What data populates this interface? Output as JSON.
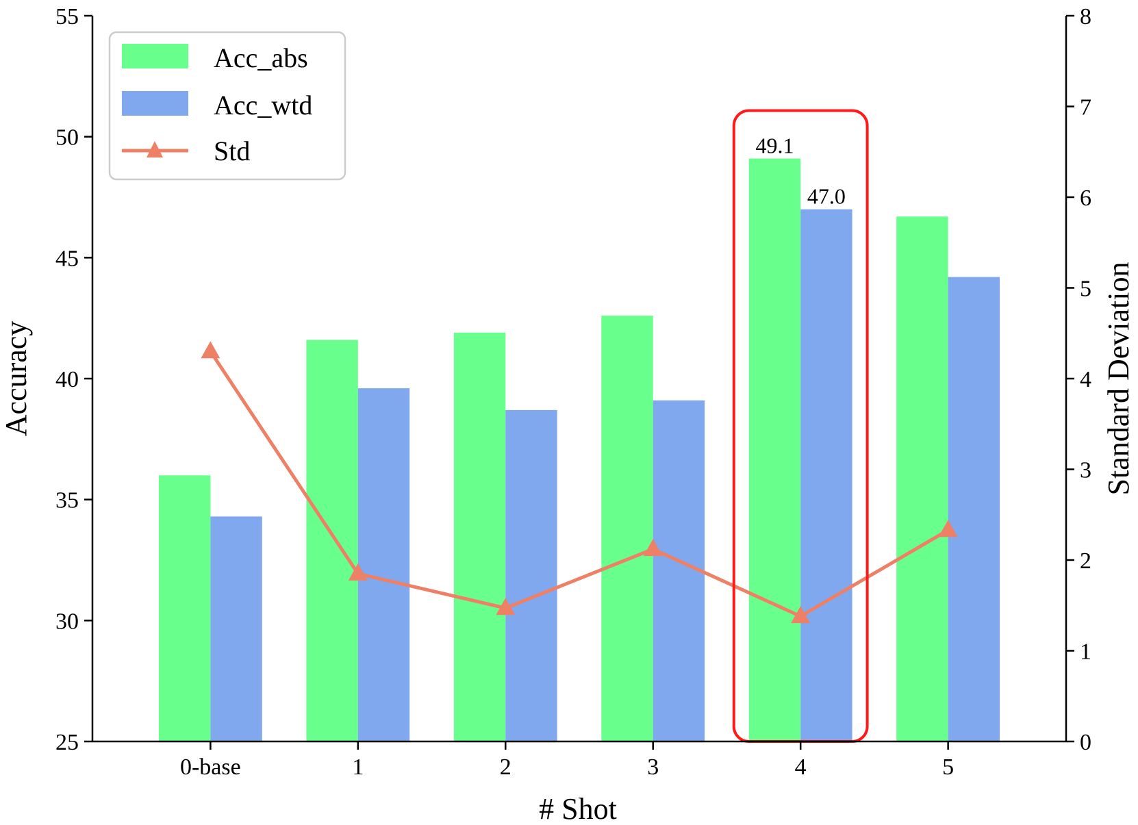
{
  "chart_data": {
    "type": "bar",
    "categories": [
      "0-base",
      "1",
      "2",
      "3",
      "4",
      "5"
    ],
    "series": [
      {
        "name": "Acc_abs",
        "kind": "bar",
        "axis": "left",
        "color": "#69FF8C",
        "values": [
          36.0,
          41.6,
          41.9,
          42.6,
          49.1,
          46.7
        ]
      },
      {
        "name": "Acc_wtd",
        "kind": "bar",
        "axis": "left",
        "color": "#80A8EE",
        "values": [
          34.3,
          39.6,
          38.7,
          39.1,
          47.0,
          44.2
        ]
      },
      {
        "name": "Std",
        "kind": "line",
        "axis": "right",
        "color": "#EE8066",
        "marker": "triangle",
        "values": [
          4.3,
          1.85,
          1.47,
          2.12,
          1.38,
          2.33
        ]
      }
    ],
    "xlabel": "# Shot",
    "ylabel": "Accuracy",
    "ylabel_right": "Standard Deviation",
    "ylim": [
      25,
      55
    ],
    "ylim_right": [
      0,
      8
    ],
    "yticks": [
      "25",
      "30",
      "35",
      "40",
      "45",
      "50",
      "55"
    ],
    "yticks_right": [
      "0",
      "1",
      "2",
      "3",
      "4",
      "5",
      "6",
      "7",
      "8"
    ],
    "grid": false,
    "legend_position": "top-left",
    "annotations": [
      {
        "category_index": 4,
        "series_index": 0,
        "text": "49.1"
      },
      {
        "category_index": 4,
        "series_index": 1,
        "text": "47.0"
      }
    ],
    "highlight": {
      "category_index": 4,
      "color": "#FF1A1A"
    }
  }
}
